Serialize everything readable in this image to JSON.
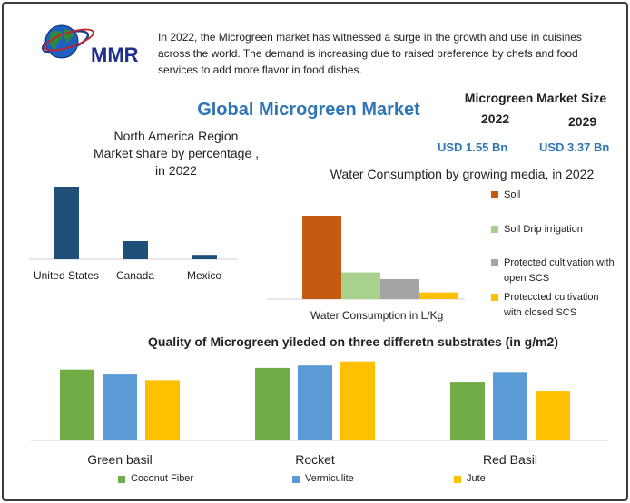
{
  "brand": {
    "name": "MMR"
  },
  "intro_text": "In 2022, the Microgreen market has witnessed a surge in the growth and use in cuisines across the world. The demand is increasing due to raised preference by chefs and food services to add more flavor in food dishes.",
  "main_title": "Global Microgreen Market",
  "market_size": {
    "title": "Microgreen Market Size",
    "year_a": "2022",
    "year_b": "2029",
    "value_a": "USD 1.55 Bn",
    "value_b": "USD 3.37 Bn"
  },
  "chart_data": [
    {
      "type": "bar",
      "title_lines": [
        "North America Region",
        "Market share by percentage ,",
        "in 2022"
      ],
      "categories": [
        "United States",
        "Canada",
        "Mexico"
      ],
      "values": [
        100,
        25,
        6
      ],
      "colors": {
        "bar": "#1f4e79"
      }
    },
    {
      "type": "bar",
      "title": "Water Consumption by growing media, in 2022",
      "xlabel": "Water Consumption in L/Kg",
      "series": [
        {
          "name": "Soil",
          "value": 100,
          "color": "#c55a11"
        },
        {
          "name": "Soil Drip irrigation",
          "value": 32,
          "color": "#a9d18e"
        },
        {
          "name": "Protected cultivation with open SCS",
          "value": 24,
          "color": "#a5a5a5"
        },
        {
          "name": "Proteccted cultivation with closed SCS",
          "value": 8,
          "color": "#ffc000"
        }
      ]
    },
    {
      "type": "bar",
      "title": "Quality of Microgreen yileded on three differetn substrates (in g/m2)",
      "categories": [
        "Green basil",
        "Rocket",
        "Red Basil"
      ],
      "ylim": [
        0,
        100
      ],
      "series": [
        {
          "name": "Coconut Fiber",
          "color": "#70ad47",
          "values": [
            87,
            89,
            71
          ]
        },
        {
          "name": "Vermiculite",
          "color": "#5b9bd5",
          "values": [
            81,
            92,
            83
          ]
        },
        {
          "name": "Jute",
          "color": "#ffc000",
          "values": [
            74,
            97,
            61
          ]
        }
      ]
    }
  ]
}
